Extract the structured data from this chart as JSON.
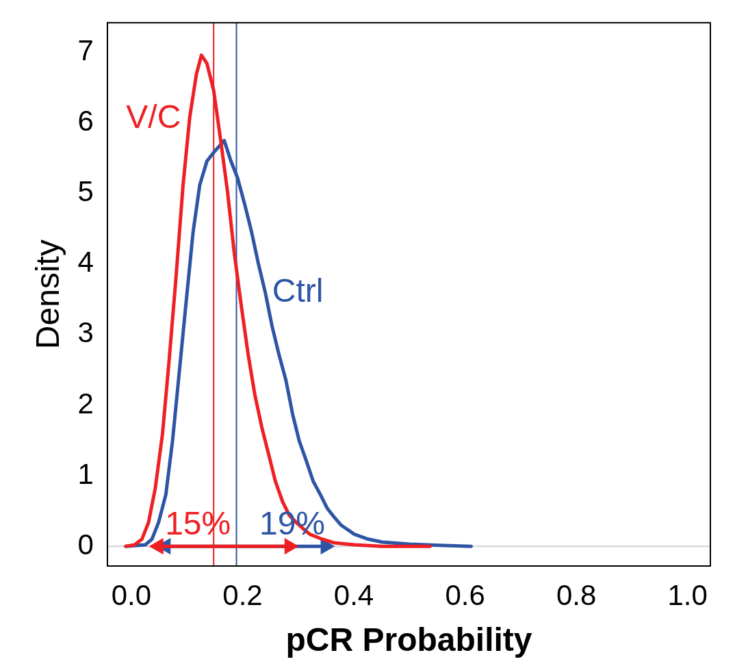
{
  "chart_data": {
    "type": "line",
    "xlabel": "pCR Probability",
    "ylabel": "Density",
    "xlim": [
      -0.043,
      1.041
    ],
    "ylim": [
      -0.28,
      7.42
    ],
    "xticks": [
      {
        "value": 0,
        "label": "0.0"
      },
      0.2,
      0.4,
      0.6,
      0.8,
      {
        "value": 1,
        "label": "1.0"
      }
    ],
    "yticks": [
      0,
      1,
      2,
      3,
      4,
      5,
      6,
      7
    ],
    "grid": false,
    "legend": false,
    "marker": "none",
    "line_style": "solid",
    "ref_lines": [
      {
        "axis": "x",
        "value": 0.148,
        "color": "#ee2024"
      },
      {
        "axis": "x",
        "value": 0.189,
        "color": "#2e55a5"
      },
      {
        "axis": "y",
        "value": 0,
        "color": "#d3d3d3"
      }
    ],
    "series": [
      {
        "name": "V/C",
        "color": "#ee2024",
        "x": [
          -0.01,
          0.006,
          0.019,
          0.031,
          0.043,
          0.056,
          0.068,
          0.08,
          0.093,
          0.105,
          0.117,
          0.126,
          0.136,
          0.148,
          0.16,
          0.173,
          0.185,
          0.198,
          0.21,
          0.222,
          0.235,
          0.247,
          0.259,
          0.272,
          0.284,
          0.296,
          0.309,
          0.321,
          0.34,
          0.364,
          0.401,
          0.451,
          0.537
        ],
        "values": [
          0,
          0.02,
          0.1,
          0.34,
          0.82,
          1.59,
          2.64,
          3.78,
          5.12,
          6.08,
          6.69,
          6.96,
          6.84,
          6.46,
          5.79,
          5.02,
          4.16,
          3.39,
          2.72,
          2.15,
          1.67,
          1.3,
          0.92,
          0.63,
          0.44,
          0.34,
          0.25,
          0.17,
          0.11,
          0.05,
          0.02,
          0,
          0
        ]
      },
      {
        "name": "Ctrl",
        "color": "#2e55a5",
        "x": [
          -0.01,
          0.025,
          0.037,
          0.049,
          0.062,
          0.074,
          0.086,
          0.099,
          0.111,
          0.123,
          0.136,
          0.148,
          0.167,
          0.179,
          0.191,
          0.204,
          0.216,
          0.228,
          0.241,
          0.253,
          0.265,
          0.278,
          0.29,
          0.302,
          0.315,
          0.327,
          0.34,
          0.352,
          0.364,
          0.377,
          0.401,
          0.426,
          0.451,
          0.5,
          0.562,
          0.611
        ],
        "values": [
          0,
          0.02,
          0.1,
          0.34,
          0.73,
          1.49,
          2.45,
          3.5,
          4.45,
          5.12,
          5.46,
          5.58,
          5.75,
          5.46,
          5.22,
          4.84,
          4.46,
          4.02,
          3.59,
          3.12,
          2.73,
          2.35,
          1.87,
          1.49,
          1.2,
          0.92,
          0.73,
          0.54,
          0.42,
          0.3,
          0.17,
          0.1,
          0.06,
          0.03,
          0.01,
          0
        ]
      },
      {
        "name": "15%",
        "color": "#ee2024",
        "marker": "triangle",
        "x": [
          0.049,
          0.284
        ],
        "values": [
          0,
          0
        ]
      },
      {
        "name": "19%",
        "color": "#2e55a5",
        "marker": "triangle",
        "x": [
          0.062,
          0.349
        ],
        "values": [
          0,
          0
        ]
      }
    ]
  }
}
